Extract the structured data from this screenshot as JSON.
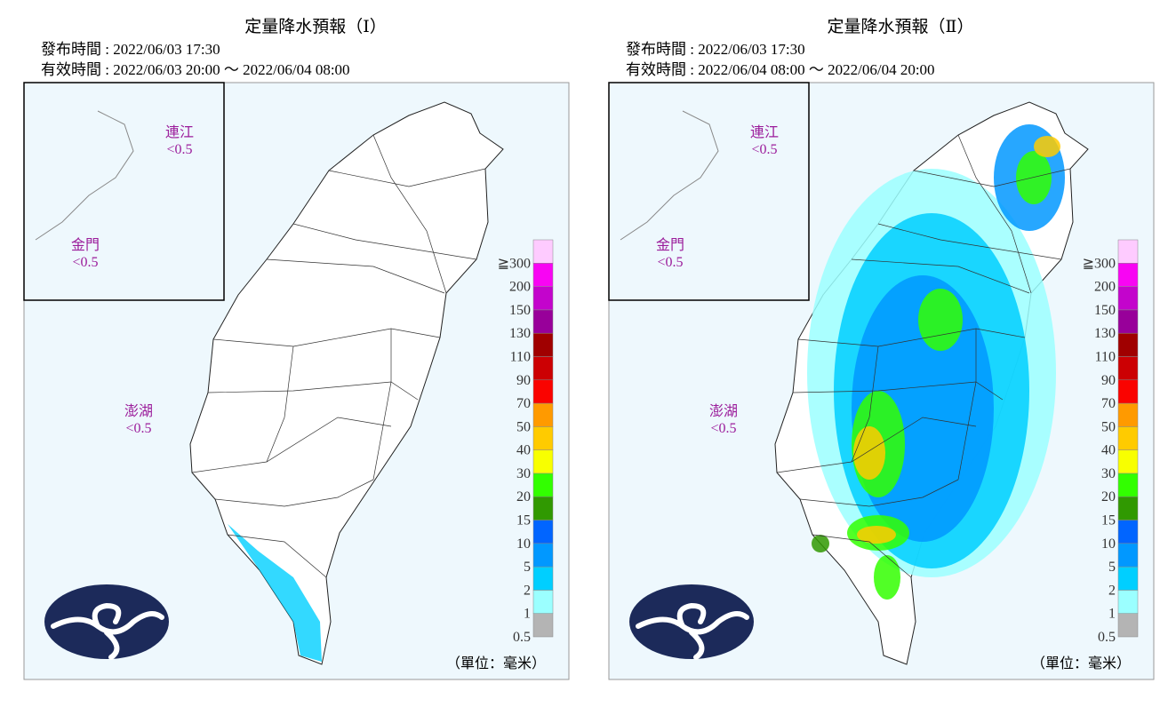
{
  "panels": [
    {
      "title": "定量降水預報（Ⅰ）",
      "issued": "發布時間 : 2022/06/03 17:30",
      "valid": "有效時間 : 2022/06/03 20:00 ～ 2022/06/04 08:00",
      "islands": [
        {
          "name": "連江",
          "value": "<0.5"
        },
        {
          "name": "金門",
          "value": "<0.5"
        },
        {
          "name": "澎湖",
          "value": "<0.5"
        }
      ]
    },
    {
      "title": "定量降水預報（Ⅱ）",
      "issued": "發布時間 : 2022/06/03 17:30",
      "valid": "有效時間 : 2022/06/04 08:00 ～ 2022/06/04 20:00",
      "islands": [
        {
          "name": "連江",
          "value": "<0.5"
        },
        {
          "name": "金門",
          "value": "<0.5"
        },
        {
          "name": "澎湖",
          "value": "<0.5"
        }
      ]
    }
  ],
  "legend": {
    "levels": [
      {
        "label": "0.5",
        "color": "#b4b4b4"
      },
      {
        "label": "1",
        "color": "#9bffff"
      },
      {
        "label": "2",
        "color": "#00cfff"
      },
      {
        "label": "5",
        "color": "#0198ff"
      },
      {
        "label": "10",
        "color": "#0165ff"
      },
      {
        "label": "15",
        "color": "#309901"
      },
      {
        "label": "20",
        "color": "#32ff00"
      },
      {
        "label": "30",
        "color": "#f8ff00"
      },
      {
        "label": "40",
        "color": "#ffcb00"
      },
      {
        "label": "50",
        "color": "#ff9a00"
      },
      {
        "label": "70",
        "color": "#fa0300"
      },
      {
        "label": "90",
        "color": "#cc0003"
      },
      {
        "label": "110",
        "color": "#a00000"
      },
      {
        "label": "130",
        "color": "#98009a"
      },
      {
        "label": "150",
        "color": "#c304cc"
      },
      {
        "label": "200",
        "color": "#f805f3"
      },
      {
        "label": "≧300",
        "color": "#fecbff"
      }
    ],
    "unit": "（單位：毫米）"
  }
}
